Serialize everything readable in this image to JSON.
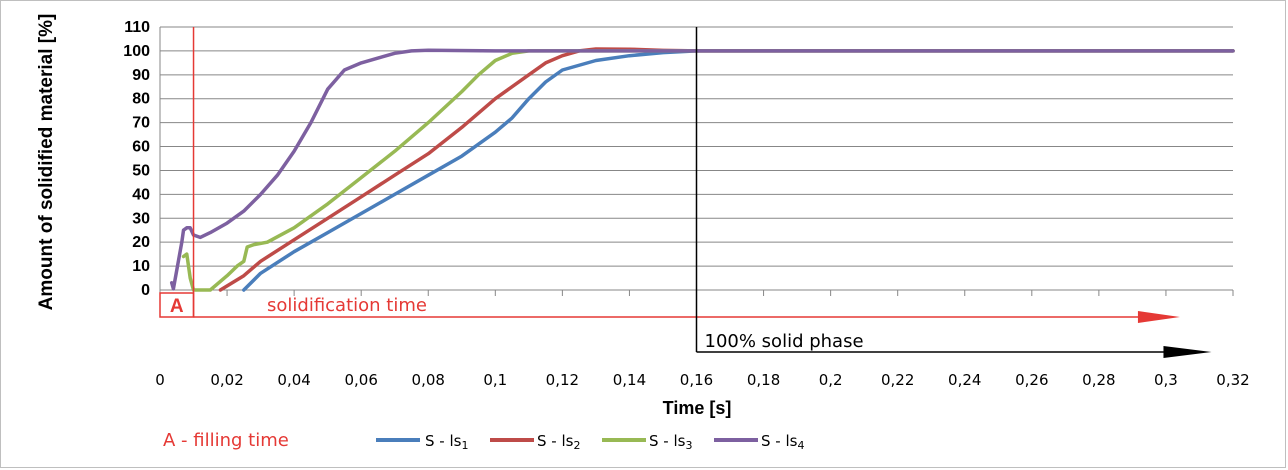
{
  "chart_data": {
    "type": "line",
    "xlabel": "Time [s]",
    "ylabel": "Amount of solidified material [%]",
    "xlim": [
      0,
      0.32
    ],
    "ylim": [
      0,
      110
    ],
    "x_ticks": [
      "0",
      "0,02",
      "0,04",
      "0,06",
      "0,08",
      "0,1",
      "0,12",
      "0,14",
      "0,16",
      "0,18",
      "0,2",
      "0,22",
      "0,24",
      "0,26",
      "0,28",
      "0,3",
      "0,32"
    ],
    "y_ticks": [
      "0",
      "10",
      "20",
      "30",
      "40",
      "50",
      "60",
      "70",
      "80",
      "90",
      "100",
      "110"
    ],
    "grid": "horizontal",
    "legend_position": "bottom",
    "series": [
      {
        "name": "S - ls1",
        "color": "#4a7ebb",
        "points": [
          [
            0.025,
            0
          ],
          [
            0.03,
            7
          ],
          [
            0.04,
            16
          ],
          [
            0.05,
            24
          ],
          [
            0.06,
            32
          ],
          [
            0.07,
            40
          ],
          [
            0.08,
            48
          ],
          [
            0.09,
            56
          ],
          [
            0.1,
            66
          ],
          [
            0.105,
            72
          ],
          [
            0.11,
            80
          ],
          [
            0.115,
            87
          ],
          [
            0.12,
            92
          ],
          [
            0.13,
            96
          ],
          [
            0.14,
            98
          ],
          [
            0.15,
            99.3
          ],
          [
            0.16,
            100
          ],
          [
            0.2,
            100
          ],
          [
            0.25,
            100
          ],
          [
            0.3,
            100
          ],
          [
            0.32,
            100
          ]
        ]
      },
      {
        "name": "S - ls2",
        "color": "#be4b48",
        "points": [
          [
            0.018,
            0
          ],
          [
            0.025,
            6
          ],
          [
            0.03,
            12
          ],
          [
            0.04,
            21
          ],
          [
            0.05,
            30
          ],
          [
            0.06,
            39
          ],
          [
            0.07,
            48
          ],
          [
            0.08,
            57
          ],
          [
            0.09,
            68
          ],
          [
            0.1,
            80
          ],
          [
            0.11,
            90
          ],
          [
            0.115,
            95
          ],
          [
            0.12,
            98
          ],
          [
            0.125,
            100
          ],
          [
            0.13,
            100.8
          ],
          [
            0.14,
            100.7
          ],
          [
            0.15,
            100.2
          ],
          [
            0.16,
            100
          ],
          [
            0.2,
            100
          ],
          [
            0.25,
            100
          ],
          [
            0.3,
            100
          ],
          [
            0.32,
            100
          ]
        ]
      },
      {
        "name": "S - ls3",
        "color": "#98b954",
        "points": [
          [
            0.007,
            14
          ],
          [
            0.008,
            15
          ],
          [
            0.009,
            5
          ],
          [
            0.01,
            0
          ],
          [
            0.015,
            0
          ],
          [
            0.02,
            6
          ],
          [
            0.023,
            10
          ],
          [
            0.025,
            12
          ],
          [
            0.026,
            18
          ],
          [
            0.028,
            19
          ],
          [
            0.032,
            20
          ],
          [
            0.04,
            26
          ],
          [
            0.05,
            36
          ],
          [
            0.06,
            47
          ],
          [
            0.07,
            58
          ],
          [
            0.08,
            70
          ],
          [
            0.09,
            83
          ],
          [
            0.095,
            90
          ],
          [
            0.1,
            96
          ],
          [
            0.105,
            99
          ],
          [
            0.11,
            100
          ],
          [
            0.12,
            100
          ],
          [
            0.16,
            100
          ],
          [
            0.2,
            100
          ],
          [
            0.25,
            100
          ],
          [
            0.3,
            100
          ],
          [
            0.32,
            100
          ]
        ]
      },
      {
        "name": "S - ls4",
        "color": "#7d60a0",
        "points": [
          [
            0.0035,
            3
          ],
          [
            0.004,
            0.5
          ],
          [
            0.0065,
            20
          ],
          [
            0.007,
            25
          ],
          [
            0.008,
            26
          ],
          [
            0.009,
            26
          ],
          [
            0.01,
            23
          ],
          [
            0.012,
            22
          ],
          [
            0.015,
            24
          ],
          [
            0.02,
            28
          ],
          [
            0.025,
            33
          ],
          [
            0.03,
            40
          ],
          [
            0.035,
            48
          ],
          [
            0.04,
            58
          ],
          [
            0.045,
            70
          ],
          [
            0.05,
            84
          ],
          [
            0.055,
            92
          ],
          [
            0.06,
            95
          ],
          [
            0.065,
            97
          ],
          [
            0.07,
            99
          ],
          [
            0.075,
            100
          ],
          [
            0.08,
            100.3
          ],
          [
            0.1,
            100
          ],
          [
            0.16,
            100
          ],
          [
            0.2,
            100
          ],
          [
            0.25,
            100
          ],
          [
            0.3,
            100
          ],
          [
            0.32,
            100
          ]
        ]
      }
    ],
    "annotations": {
      "filling_marker": "A",
      "filling_time_x": 0.01,
      "solidification_label": "solidification time",
      "solidification_end_x": 0.3,
      "solid_phase_label": "100% solid phase",
      "solid_phase_x": 0.16,
      "solid_phase_end_x": 0.31,
      "filling_legend": "A - filling time"
    }
  },
  "legend": {
    "filling": "A - filling time",
    "s1_prefix": "S - ls",
    "s1_sub": "1",
    "s2_prefix": "S - ls",
    "s2_sub": "2",
    "s3_prefix": "S - ls",
    "s3_sub": "3",
    "s4_prefix": "S - ls",
    "s4_sub": "4"
  }
}
